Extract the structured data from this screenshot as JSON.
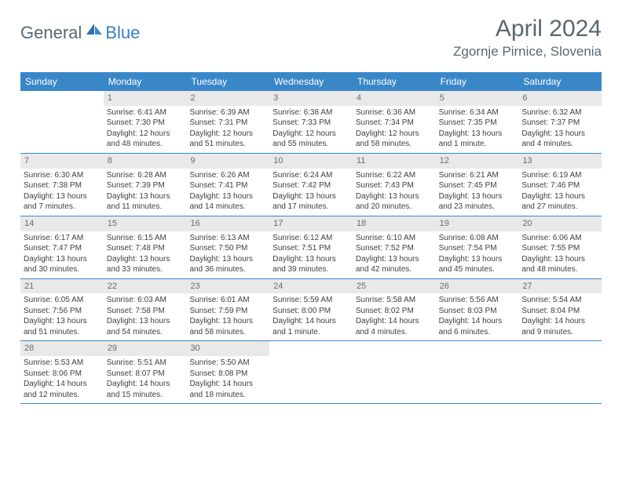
{
  "logo": {
    "part1": "General",
    "part2": "Blue"
  },
  "title": "April 2024",
  "location": "Zgornje Pirnice, Slovenia",
  "colors": {
    "header_bg": "#3a87c8",
    "daynum_bg": "#e9e9e9",
    "text": "#404040",
    "title_text": "#5a6770"
  },
  "day_labels": [
    "Sunday",
    "Monday",
    "Tuesday",
    "Wednesday",
    "Thursday",
    "Friday",
    "Saturday"
  ],
  "weeks": [
    [
      {
        "n": "",
        "sr": "",
        "ss": "",
        "d1": "",
        "d2": "",
        "empty": true
      },
      {
        "n": "1",
        "sr": "Sunrise: 6:41 AM",
        "ss": "Sunset: 7:30 PM",
        "d1": "Daylight: 12 hours",
        "d2": "and 48 minutes."
      },
      {
        "n": "2",
        "sr": "Sunrise: 6:39 AM",
        "ss": "Sunset: 7:31 PM",
        "d1": "Daylight: 12 hours",
        "d2": "and 51 minutes."
      },
      {
        "n": "3",
        "sr": "Sunrise: 6:38 AM",
        "ss": "Sunset: 7:33 PM",
        "d1": "Daylight: 12 hours",
        "d2": "and 55 minutes."
      },
      {
        "n": "4",
        "sr": "Sunrise: 6:36 AM",
        "ss": "Sunset: 7:34 PM",
        "d1": "Daylight: 12 hours",
        "d2": "and 58 minutes."
      },
      {
        "n": "5",
        "sr": "Sunrise: 6:34 AM",
        "ss": "Sunset: 7:35 PM",
        "d1": "Daylight: 13 hours",
        "d2": "and 1 minute."
      },
      {
        "n": "6",
        "sr": "Sunrise: 6:32 AM",
        "ss": "Sunset: 7:37 PM",
        "d1": "Daylight: 13 hours",
        "d2": "and 4 minutes."
      }
    ],
    [
      {
        "n": "7",
        "sr": "Sunrise: 6:30 AM",
        "ss": "Sunset: 7:38 PM",
        "d1": "Daylight: 13 hours",
        "d2": "and 7 minutes."
      },
      {
        "n": "8",
        "sr": "Sunrise: 6:28 AM",
        "ss": "Sunset: 7:39 PM",
        "d1": "Daylight: 13 hours",
        "d2": "and 11 minutes."
      },
      {
        "n": "9",
        "sr": "Sunrise: 6:26 AM",
        "ss": "Sunset: 7:41 PM",
        "d1": "Daylight: 13 hours",
        "d2": "and 14 minutes."
      },
      {
        "n": "10",
        "sr": "Sunrise: 6:24 AM",
        "ss": "Sunset: 7:42 PM",
        "d1": "Daylight: 13 hours",
        "d2": "and 17 minutes."
      },
      {
        "n": "11",
        "sr": "Sunrise: 6:22 AM",
        "ss": "Sunset: 7:43 PM",
        "d1": "Daylight: 13 hours",
        "d2": "and 20 minutes."
      },
      {
        "n": "12",
        "sr": "Sunrise: 6:21 AM",
        "ss": "Sunset: 7:45 PM",
        "d1": "Daylight: 13 hours",
        "d2": "and 23 minutes."
      },
      {
        "n": "13",
        "sr": "Sunrise: 6:19 AM",
        "ss": "Sunset: 7:46 PM",
        "d1": "Daylight: 13 hours",
        "d2": "and 27 minutes."
      }
    ],
    [
      {
        "n": "14",
        "sr": "Sunrise: 6:17 AM",
        "ss": "Sunset: 7:47 PM",
        "d1": "Daylight: 13 hours",
        "d2": "and 30 minutes."
      },
      {
        "n": "15",
        "sr": "Sunrise: 6:15 AM",
        "ss": "Sunset: 7:48 PM",
        "d1": "Daylight: 13 hours",
        "d2": "and 33 minutes."
      },
      {
        "n": "16",
        "sr": "Sunrise: 6:13 AM",
        "ss": "Sunset: 7:50 PM",
        "d1": "Daylight: 13 hours",
        "d2": "and 36 minutes."
      },
      {
        "n": "17",
        "sr": "Sunrise: 6:12 AM",
        "ss": "Sunset: 7:51 PM",
        "d1": "Daylight: 13 hours",
        "d2": "and 39 minutes."
      },
      {
        "n": "18",
        "sr": "Sunrise: 6:10 AM",
        "ss": "Sunset: 7:52 PM",
        "d1": "Daylight: 13 hours",
        "d2": "and 42 minutes."
      },
      {
        "n": "19",
        "sr": "Sunrise: 6:08 AM",
        "ss": "Sunset: 7:54 PM",
        "d1": "Daylight: 13 hours",
        "d2": "and 45 minutes."
      },
      {
        "n": "20",
        "sr": "Sunrise: 6:06 AM",
        "ss": "Sunset: 7:55 PM",
        "d1": "Daylight: 13 hours",
        "d2": "and 48 minutes."
      }
    ],
    [
      {
        "n": "21",
        "sr": "Sunrise: 6:05 AM",
        "ss": "Sunset: 7:56 PM",
        "d1": "Daylight: 13 hours",
        "d2": "and 51 minutes."
      },
      {
        "n": "22",
        "sr": "Sunrise: 6:03 AM",
        "ss": "Sunset: 7:58 PM",
        "d1": "Daylight: 13 hours",
        "d2": "and 54 minutes."
      },
      {
        "n": "23",
        "sr": "Sunrise: 6:01 AM",
        "ss": "Sunset: 7:59 PM",
        "d1": "Daylight: 13 hours",
        "d2": "and 58 minutes."
      },
      {
        "n": "24",
        "sr": "Sunrise: 5:59 AM",
        "ss": "Sunset: 8:00 PM",
        "d1": "Daylight: 14 hours",
        "d2": "and 1 minute."
      },
      {
        "n": "25",
        "sr": "Sunrise: 5:58 AM",
        "ss": "Sunset: 8:02 PM",
        "d1": "Daylight: 14 hours",
        "d2": "and 4 minutes."
      },
      {
        "n": "26",
        "sr": "Sunrise: 5:56 AM",
        "ss": "Sunset: 8:03 PM",
        "d1": "Daylight: 14 hours",
        "d2": "and 6 minutes."
      },
      {
        "n": "27",
        "sr": "Sunrise: 5:54 AM",
        "ss": "Sunset: 8:04 PM",
        "d1": "Daylight: 14 hours",
        "d2": "and 9 minutes."
      }
    ],
    [
      {
        "n": "28",
        "sr": "Sunrise: 5:53 AM",
        "ss": "Sunset: 8:06 PM",
        "d1": "Daylight: 14 hours",
        "d2": "and 12 minutes."
      },
      {
        "n": "29",
        "sr": "Sunrise: 5:51 AM",
        "ss": "Sunset: 8:07 PM",
        "d1": "Daylight: 14 hours",
        "d2": "and 15 minutes."
      },
      {
        "n": "30",
        "sr": "Sunrise: 5:50 AM",
        "ss": "Sunset: 8:08 PM",
        "d1": "Daylight: 14 hours",
        "d2": "and 18 minutes."
      },
      {
        "n": "",
        "sr": "",
        "ss": "",
        "d1": "",
        "d2": "",
        "empty": true
      },
      {
        "n": "",
        "sr": "",
        "ss": "",
        "d1": "",
        "d2": "",
        "empty": true
      },
      {
        "n": "",
        "sr": "",
        "ss": "",
        "d1": "",
        "d2": "",
        "empty": true
      },
      {
        "n": "",
        "sr": "",
        "ss": "",
        "d1": "",
        "d2": "",
        "empty": true
      }
    ]
  ]
}
